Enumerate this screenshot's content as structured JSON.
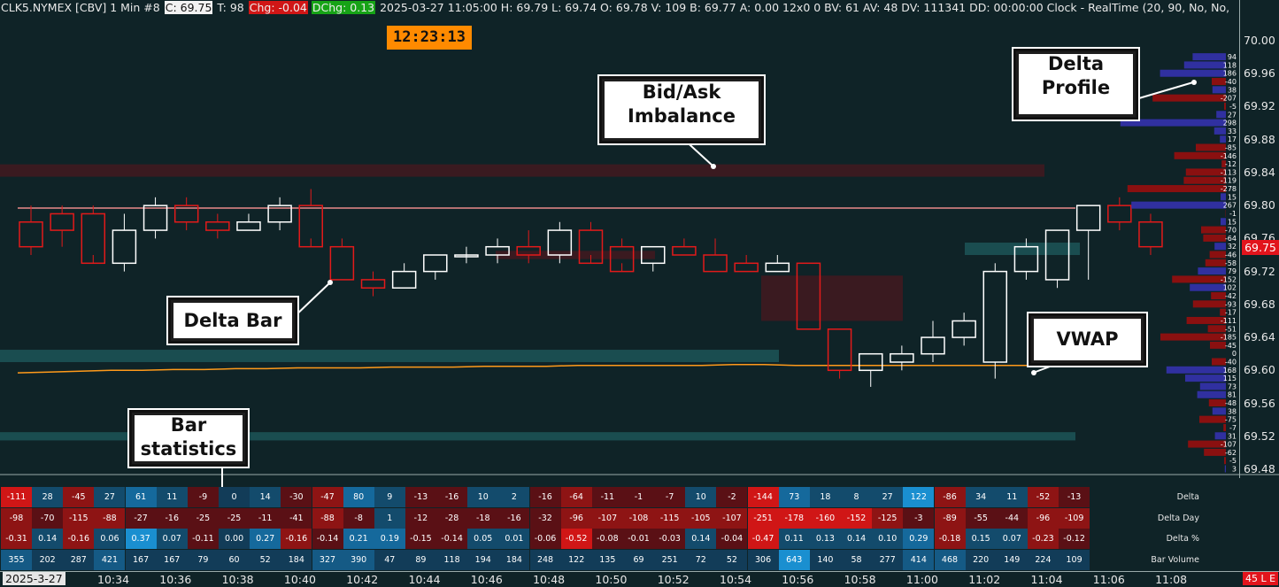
{
  "topbar": {
    "prefix": "CLK5.NYMEX [CBV]  1 Min  #8",
    "close": "C: 69.75",
    "ticks": "T: 98",
    "chg": "Chg: -0.04",
    "dchg": "DChg: 0.13",
    "rest": "2025-03-27  11:05:00 H: 69.79  L: 69.74  O: 69.78  V: 109  B: 69.77  A: 0.00  12x0  0  BV: 61  AV: 48  DV: 111341  DD: 00:00:00  Clock - RealTime  (20, 90, No, No,"
  },
  "clock": "12:23:13",
  "price_axis": {
    "labels": [
      "70.00",
      "69.96",
      "69.92",
      "69.88",
      "69.84",
      "69.80",
      "69.76",
      "69.72",
      "69.68",
      "69.64",
      "69.60",
      "69.56",
      "69.52",
      "69.48"
    ],
    "last_price": "69.75"
  },
  "callouts": {
    "bid_ask": [
      "Bid/Ask",
      "Imbalance"
    ],
    "delta_profile": [
      "Delta",
      "Profile"
    ],
    "delta_bar": "Delta Bar",
    "vwap": "VWAP",
    "bar_stats": [
      "Bar",
      "statistics"
    ]
  },
  "time_axis": {
    "date": "2025-3-27",
    "labels": [
      "10:34",
      "10:36",
      "10:38",
      "10:40",
      "10:42",
      "10:44",
      "10:46",
      "10:48",
      "10:50",
      "10:52",
      "10:54",
      "10:56",
      "10:58",
      "11:00",
      "11:02",
      "11:04",
      "11:06",
      "11:08"
    ],
    "right_tag": "45 L E"
  },
  "colors": {
    "background": "#0f2327",
    "up_bar": "#ffffff",
    "down_bar": "#e21a1a",
    "vwap": "#ff9a1a",
    "bid_ask_line": "#e88a8a",
    "positive_delta": "#3030a0",
    "negative_delta": "#8a1010",
    "imbalance_zone": "#3a1a20",
    "teal_zone": "#1a4d50"
  },
  "chart_data": {
    "type": "candlestick",
    "price_range": [
      69.46,
      70.02
    ],
    "time_labels": [
      "10:34",
      "10:36",
      "10:38",
      "10:40",
      "10:42",
      "10:44",
      "10:46",
      "10:48",
      "10:50",
      "10:52",
      "10:54",
      "10:56",
      "10:58",
      "11:00",
      "11:02",
      "11:04",
      "11:06",
      "11:08"
    ],
    "bars": [
      {
        "o": 69.78,
        "h": 69.8,
        "l": 69.74,
        "c": 69.75
      },
      {
        "o": 69.79,
        "h": 69.8,
        "l": 69.75,
        "c": 69.77
      },
      {
        "o": 69.79,
        "h": 69.8,
        "l": 69.74,
        "c": 69.73
      },
      {
        "o": 69.73,
        "h": 69.79,
        "l": 69.72,
        "c": 69.77
      },
      {
        "o": 69.77,
        "h": 69.81,
        "l": 69.76,
        "c": 69.8
      },
      {
        "o": 69.8,
        "h": 69.81,
        "l": 69.77,
        "c": 69.78
      },
      {
        "o": 69.78,
        "h": 69.79,
        "l": 69.76,
        "c": 69.77
      },
      {
        "o": 69.77,
        "h": 69.79,
        "l": 69.77,
        "c": 69.78
      },
      {
        "o": 69.78,
        "h": 69.81,
        "l": 69.77,
        "c": 69.8
      },
      {
        "o": 69.8,
        "h": 69.82,
        "l": 69.76,
        "c": 69.75
      },
      {
        "o": 69.75,
        "h": 69.76,
        "l": 69.71,
        "c": 69.71
      },
      {
        "o": 69.71,
        "h": 69.72,
        "l": 69.69,
        "c": 69.7
      },
      {
        "o": 69.7,
        "h": 69.73,
        "l": 69.7,
        "c": 69.72
      },
      {
        "o": 69.72,
        "h": 69.74,
        "l": 69.71,
        "c": 69.74
      },
      {
        "o": 69.74,
        "h": 69.75,
        "l": 69.73,
        "c": 69.74
      },
      {
        "o": 69.74,
        "h": 69.76,
        "l": 69.73,
        "c": 69.75
      },
      {
        "o": 69.75,
        "h": 69.77,
        "l": 69.73,
        "c": 69.74
      },
      {
        "o": 69.74,
        "h": 69.78,
        "l": 69.73,
        "c": 69.77
      },
      {
        "o": 69.77,
        "h": 69.78,
        "l": 69.74,
        "c": 69.73
      },
      {
        "o": 69.75,
        "h": 69.76,
        "l": 69.73,
        "c": 69.72
      },
      {
        "o": 69.73,
        "h": 69.75,
        "l": 69.72,
        "c": 69.75
      },
      {
        "o": 69.75,
        "h": 69.76,
        "l": 69.74,
        "c": 69.74
      },
      {
        "o": 69.74,
        "h": 69.76,
        "l": 69.72,
        "c": 69.72
      },
      {
        "o": 69.73,
        "h": 69.74,
        "l": 69.72,
        "c": 69.72
      },
      {
        "o": 69.72,
        "h": 69.74,
        "l": 69.72,
        "c": 69.73
      },
      {
        "o": 69.73,
        "h": 69.73,
        "l": 69.65,
        "c": 69.65
      },
      {
        "o": 69.65,
        "h": 69.65,
        "l": 69.59,
        "c": 69.6
      },
      {
        "o": 69.6,
        "h": 69.62,
        "l": 69.58,
        "c": 69.62
      },
      {
        "o": 69.61,
        "h": 69.63,
        "l": 69.6,
        "c": 69.62
      },
      {
        "o": 69.62,
        "h": 69.66,
        "l": 69.61,
        "c": 69.64
      },
      {
        "o": 69.64,
        "h": 69.67,
        "l": 69.63,
        "c": 69.66
      },
      {
        "o": 69.61,
        "h": 69.73,
        "l": 69.59,
        "c": 69.72
      },
      {
        "o": 69.72,
        "h": 69.76,
        "l": 69.71,
        "c": 69.75
      },
      {
        "o": 69.71,
        "h": 69.77,
        "l": 69.7,
        "c": 69.77
      },
      {
        "o": 69.77,
        "h": 69.8,
        "l": 69.71,
        "c": 69.8
      },
      {
        "o": 69.8,
        "h": 69.81,
        "l": 69.77,
        "c": 69.78
      },
      {
        "o": 69.78,
        "h": 69.79,
        "l": 69.74,
        "c": 69.75
      }
    ],
    "vwap": [
      69.597,
      69.598,
      69.599,
      69.6,
      69.6,
      69.601,
      69.601,
      69.602,
      69.602,
      69.603,
      69.603,
      69.603,
      69.604,
      69.604,
      69.604,
      69.605,
      69.605,
      69.605,
      69.606,
      69.606,
      69.606,
      69.606,
      69.606,
      69.607,
      69.607,
      69.606,
      69.606,
      69.606,
      69.606,
      69.606,
      69.606,
      69.606,
      69.606,
      69.606,
      69.606,
      69.606,
      69.606
    ],
    "delta_profile": [
      {
        "price": 69.98,
        "value": 94
      },
      {
        "price": 69.97,
        "value": 118
      },
      {
        "price": 69.96,
        "value": 186
      },
      {
        "price": 69.95,
        "value": -40
      },
      {
        "price": 69.94,
        "value": 38
      },
      {
        "price": 69.93,
        "value": -207
      },
      {
        "price": 69.92,
        "value": -5
      },
      {
        "price": 69.91,
        "value": 27
      },
      {
        "price": 69.9,
        "value": 298
      },
      {
        "price": 69.89,
        "value": 33
      },
      {
        "price": 69.88,
        "value": 17
      },
      {
        "price": 69.87,
        "value": -85
      },
      {
        "price": 69.86,
        "value": -146
      },
      {
        "price": 69.85,
        "value": -12
      },
      {
        "price": 69.84,
        "value": -113
      },
      {
        "price": 69.83,
        "value": -119
      },
      {
        "price": 69.82,
        "value": -278
      },
      {
        "price": 69.81,
        "value": 15
      },
      {
        "price": 69.8,
        "value": 267
      },
      {
        "price": 69.79,
        "value": -1
      },
      {
        "price": 69.78,
        "value": 15
      },
      {
        "price": 69.77,
        "value": -70
      },
      {
        "price": 69.76,
        "value": -64
      },
      {
        "price": 69.75,
        "value": 32
      },
      {
        "price": 69.74,
        "value": -46
      },
      {
        "price": 69.73,
        "value": -58
      },
      {
        "price": 69.72,
        "value": 79
      },
      {
        "price": 69.71,
        "value": -152
      },
      {
        "price": 69.7,
        "value": 102
      },
      {
        "price": 69.69,
        "value": -42
      },
      {
        "price": 69.68,
        "value": -93
      },
      {
        "price": 69.67,
        "value": -17
      },
      {
        "price": 69.66,
        "value": -111
      },
      {
        "price": 69.65,
        "value": -51
      },
      {
        "price": 69.64,
        "value": -185
      },
      {
        "price": 69.63,
        "value": -45
      },
      {
        "price": 69.62,
        "value": 0
      },
      {
        "price": 69.61,
        "value": -40
      },
      {
        "price": 69.6,
        "value": 168
      },
      {
        "price": 69.59,
        "value": 115
      },
      {
        "price": 69.58,
        "value": 73
      },
      {
        "price": 69.57,
        "value": 81
      },
      {
        "price": 69.56,
        "value": -48
      },
      {
        "price": 69.55,
        "value": 38
      },
      {
        "price": 69.54,
        "value": -75
      },
      {
        "price": 69.53,
        "value": -7
      },
      {
        "price": 69.52,
        "value": 31
      },
      {
        "price": 69.51,
        "value": -107
      },
      {
        "price": 69.5,
        "value": -62
      },
      {
        "price": 69.49,
        "value": -5
      },
      {
        "price": 69.48,
        "value": 3
      }
    ],
    "bar_statistics": {
      "columns": 35,
      "rows": [
        {
          "name": "Delta",
          "values": [
            -111,
            28,
            -45,
            27,
            61,
            11,
            -9,
            0,
            14,
            -30,
            -47,
            80,
            9,
            -13,
            -16,
            10,
            2,
            -16,
            -64,
            -11,
            -1,
            -7,
            10,
            -2,
            -144,
            73,
            18,
            8,
            27,
            122,
            -86,
            34,
            11,
            -52,
            -13
          ]
        },
        {
          "name": "Delta Day",
          "values": [
            -98,
            -70,
            -115,
            -88,
            -27,
            -16,
            -25,
            -25,
            -11,
            -41,
            -88,
            -8,
            1,
            -12,
            -28,
            -18,
            -16,
            -32,
            -96,
            -107,
            -108,
            -115,
            -105,
            -107,
            -251,
            -178,
            -160,
            -152,
            -125,
            -3,
            -89,
            -55,
            -44,
            -96,
            -109
          ]
        },
        {
          "name": "Delta %",
          "values": [
            "-0.31",
            "0.14",
            "-0.16",
            "0.06",
            "0.37",
            "0.07",
            "-0.11",
            "0.00",
            "0.27",
            "-0.16",
            "-0.14",
            "0.21",
            "0.19",
            "-0.15",
            "-0.14",
            "0.05",
            "0.01",
            "-0.06",
            "-0.52",
            "-0.08",
            "-0.01",
            "-0.03",
            "0.14",
            "-0.04",
            "-0.47",
            "0.11",
            "0.13",
            "0.14",
            "0.10",
            "0.29",
            "-0.18",
            "0.15",
            "0.07",
            "-0.23",
            "-0.12"
          ]
        },
        {
          "name": "Bar Volume",
          "values": [
            355,
            202,
            287,
            421,
            167,
            167,
            79,
            60,
            52,
            184,
            327,
            390,
            47,
            89,
            118,
            194,
            184,
            248,
            122,
            135,
            69,
            251,
            72,
            52,
            306,
            643,
            140,
            58,
            277,
            414,
            468,
            220,
            149,
            224,
            109
          ]
        }
      ]
    }
  }
}
